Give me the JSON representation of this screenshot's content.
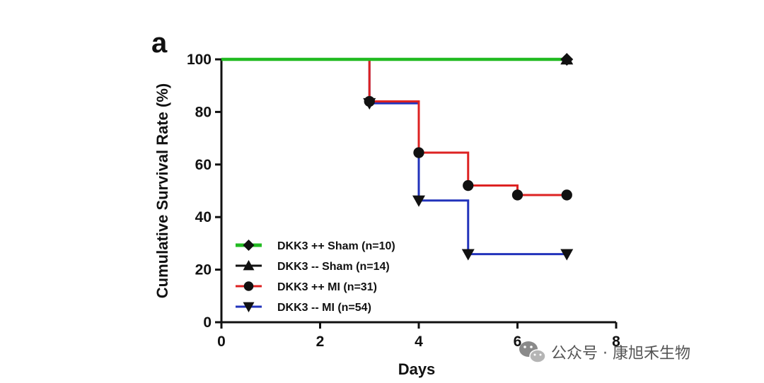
{
  "panel_label": "a",
  "watermark": {
    "text": "公众号 · 康旭禾生物",
    "icon": "wechat-icon",
    "color": "#555555"
  },
  "chart_data": {
    "type": "line",
    "subtype": "kaplan-meier-step",
    "title": "",
    "xlabel": "Days",
    "ylabel": "Cumulative Survival Rate (%)",
    "xlim": [
      0,
      8
    ],
    "ylim": [
      0,
      100
    ],
    "xticks": [
      "0",
      "2",
      "4",
      "6",
      "8"
    ],
    "yticks": [
      "0",
      "20",
      "40",
      "60",
      "80",
      "100"
    ],
    "grid": false,
    "legend_position": "bottom-left",
    "series": [
      {
        "name": "DKK3 ++ Sham (n=10)",
        "color": "#22bb22",
        "marker": "diamond",
        "steps": [
          [
            0,
            100
          ],
          [
            7,
            100
          ]
        ],
        "markers": [
          [
            7,
            100
          ]
        ]
      },
      {
        "name": "DKK3 -- Sham (n=14)",
        "color": "#111111",
        "marker": "triangle-up",
        "steps": [
          [
            0,
            100
          ],
          [
            7,
            100
          ]
        ],
        "markers": [
          [
            7,
            100
          ]
        ]
      },
      {
        "name": "DKK3 ++ MI (n=31)",
        "color": "#dd2222",
        "marker": "circle",
        "steps": [
          [
            0,
            100
          ],
          [
            3,
            84
          ],
          [
            4,
            64.5
          ],
          [
            5,
            52
          ],
          [
            6,
            48.4
          ],
          [
            7,
            48.4
          ]
        ],
        "markers": [
          [
            3,
            84
          ],
          [
            4,
            64.5
          ],
          [
            5,
            52
          ],
          [
            6,
            48.4
          ],
          [
            7,
            48.4
          ]
        ]
      },
      {
        "name": "DKK3 -- MI (n=54)",
        "color": "#2233bb",
        "marker": "triangle-down",
        "steps": [
          [
            0,
            100
          ],
          [
            3,
            83.3
          ],
          [
            4,
            46.3
          ],
          [
            5,
            25.9
          ],
          [
            7,
            25.9
          ]
        ],
        "markers": [
          [
            3,
            83.3
          ],
          [
            4,
            46.3
          ],
          [
            5,
            25.9
          ],
          [
            7,
            25.9
          ]
        ]
      }
    ]
  }
}
